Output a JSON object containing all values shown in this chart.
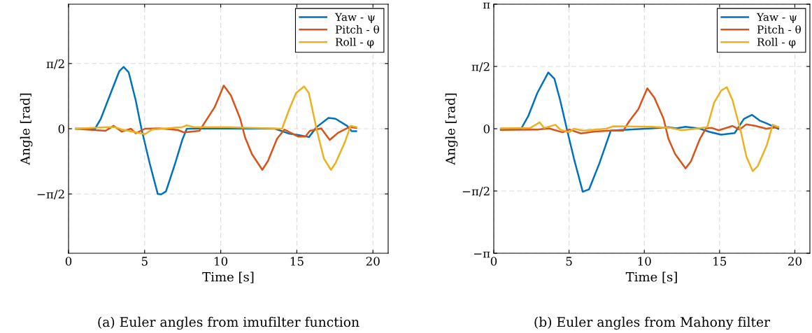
{
  "chart_data": [
    {
      "type": "line",
      "xlabel": "Time [s]",
      "ylabel": "Angle [rad]",
      "xlim": [
        0,
        21
      ],
      "ylim": [
        -3,
        3
      ],
      "xticks": [
        0,
        5,
        10,
        15,
        20
      ],
      "yticks": [
        {
          "value": -1.5708,
          "label": "−π/2"
        },
        0,
        {
          "value": 1.5708,
          "label": "π/2"
        }
      ],
      "grid": true,
      "legend": "top right",
      "line_style": "solid",
      "marker": "none",
      "annotations": [
        "(a) Euler angles from imufilter function"
      ],
      "series": [
        {
          "name": "Yaw - ψ",
          "color": "#0072bd",
          "x": [
            0.47,
            1.74,
            2.12,
            2.89,
            3.34,
            3.62,
            3.95,
            4.41,
            4.79,
            5.33,
            5.86,
            6.09,
            6.4,
            7.01,
            7.47,
            7.77,
            9.5,
            13.57,
            14.5,
            15.1,
            15.8,
            16.3,
            17.08,
            17.54,
            18.3,
            18.6,
            18.9
          ],
          "values": [
            0,
            0,
            0.24,
            0.97,
            1.39,
            1.49,
            1.36,
            0.69,
            0,
            -0.83,
            -1.57,
            -1.58,
            -1.51,
            -0.83,
            -0.27,
            0,
            0.01,
            0,
            -0.12,
            -0.15,
            -0.2,
            0.04,
            0.26,
            0.24,
            0.07,
            -0.06,
            -0.06
          ]
        },
        {
          "name": "Pitch - θ",
          "color": "#d95319",
          "x": [
            0.47,
            2.43,
            2.96,
            3.5,
            4.1,
            4.41,
            5.02,
            5.94,
            7.16,
            7.6,
            8.6,
            9.0,
            9.6,
            10.2,
            10.67,
            11.28,
            11.6,
            12.05,
            12.73,
            13.1,
            13.7,
            14.18,
            15.1,
            15.56,
            15.86,
            16.6,
            17.16,
            17.7,
            18.46,
            18.9
          ],
          "values": [
            0,
            -0.05,
            0.07,
            -0.07,
            0,
            -0.11,
            0,
            0.01,
            -0.03,
            -0.09,
            -0.05,
            0.18,
            0.52,
            1.04,
            0.8,
            0.24,
            -0.21,
            -0.61,
            -0.99,
            -0.78,
            -0.24,
            -0.02,
            -0.19,
            -0.19,
            -0.05,
            0.01,
            -0.27,
            -0.1,
            0.04,
            0.02
          ]
        },
        {
          "name": "Roll - φ",
          "color": "#edb120",
          "x": [
            0.47,
            2.58,
            3.05,
            3.5,
            5.02,
            5.48,
            7.47,
            7.77,
            8.23,
            10.5,
            12.0,
            14.03,
            14.49,
            14.95,
            15.48,
            15.79,
            16.32,
            16.78,
            17.24,
            17.54,
            18.15,
            18.53,
            18.9
          ],
          "values": [
            0,
            0.04,
            0.04,
            -0.02,
            -0.13,
            -0.02,
            0.04,
            0.08,
            0.04,
            0.04,
            0.02,
            0,
            0.46,
            0.86,
            1.02,
            0.86,
            -0.05,
            -0.72,
            -0.99,
            -0.83,
            -0.33,
            0.07,
            0.04
          ]
        }
      ]
    },
    {
      "type": "line",
      "xlabel": "Time [s]",
      "ylabel": "Angle [rad]",
      "xlim": [
        0,
        21
      ],
      "ylim": [
        -3.1416,
        3.1416
      ],
      "xticks": [
        0,
        5,
        10,
        15,
        20
      ],
      "yticks": [
        {
          "value": -3.1416,
          "label": "−π"
        },
        {
          "value": -1.5708,
          "label": "−π/2"
        },
        0,
        {
          "value": 1.5708,
          "label": "π/2"
        },
        {
          "value": 3.1416,
          "label": "π"
        }
      ],
      "grid": true,
      "legend": "top right",
      "line_style": "solid",
      "marker": "none",
      "annotations": [
        "(b) Euler angles from Mahony filter"
      ],
      "series": [
        {
          "name": "Yaw - ψ",
          "color": "#0072bd",
          "x": [
            0.47,
            1.82,
            2.28,
            2.89,
            3.62,
            4.03,
            4.41,
            4.88,
            5.33,
            5.91,
            6.33,
            7.01,
            7.77,
            9.0,
            10.5,
            11.6,
            12.1,
            12.74,
            13.6,
            14.33,
            15.1,
            16.0,
            16.62,
            17.16,
            17.69,
            18.15,
            18.9
          ],
          "values": [
            0,
            0,
            0.31,
            0.9,
            1.42,
            1.26,
            0.72,
            -0.05,
            -0.76,
            -1.59,
            -1.53,
            -0.88,
            -0.05,
            -0.02,
            0.01,
            0.04,
            0.01,
            0.05,
            0.01,
            -0.08,
            -0.15,
            -0.11,
            0.25,
            0.35,
            0.2,
            0.13,
            0
          ]
        },
        {
          "name": "Pitch - θ",
          "color": "#d95319",
          "x": [
            0.47,
            2.89,
            3.66,
            4.57,
            5.02,
            5.79,
            6.7,
            7.77,
            8.6,
            9.0,
            9.6,
            10.2,
            10.67,
            11.28,
            11.6,
            12.05,
            12.74,
            13.1,
            13.7,
            14.1,
            14.49,
            14.95,
            15.86,
            16.32,
            16.78,
            17.4,
            18.1,
            18.9
          ],
          "values": [
            -0.03,
            -0.02,
            0.01,
            -0.09,
            -0.02,
            -0.12,
            -0.07,
            -0.05,
            -0.05,
            0.19,
            0.49,
            1.02,
            0.78,
            0.25,
            -0.25,
            -0.64,
            -1.0,
            -0.82,
            -0.25,
            0.01,
            0.02,
            -0.04,
            0.07,
            -0.02,
            0.11,
            0.07,
            0,
            0.04
          ]
        },
        {
          "name": "Roll - φ",
          "color": "#edb120",
          "x": [
            0.47,
            2.43,
            3.05,
            3.34,
            4.1,
            4.41,
            5.02,
            5.33,
            5.94,
            7.47,
            7.93,
            10.5,
            11.75,
            12.5,
            13.57,
            14.18,
            14.64,
            15.1,
            15.48,
            15.86,
            16.4,
            16.78,
            17.2,
            17.54,
            18.15,
            18.53,
            18.9
          ],
          "values": [
            0.01,
            0.02,
            0.16,
            0.02,
            0.1,
            -0.02,
            -0.09,
            0,
            -0.05,
            0,
            0.06,
            0.05,
            0.02,
            -0.04,
            0.01,
            0.04,
            0.66,
            0.96,
            1.05,
            0.72,
            -0.05,
            -0.7,
            -1.07,
            -0.94,
            -0.4,
            0.1,
            0.04
          ]
        }
      ]
    }
  ]
}
